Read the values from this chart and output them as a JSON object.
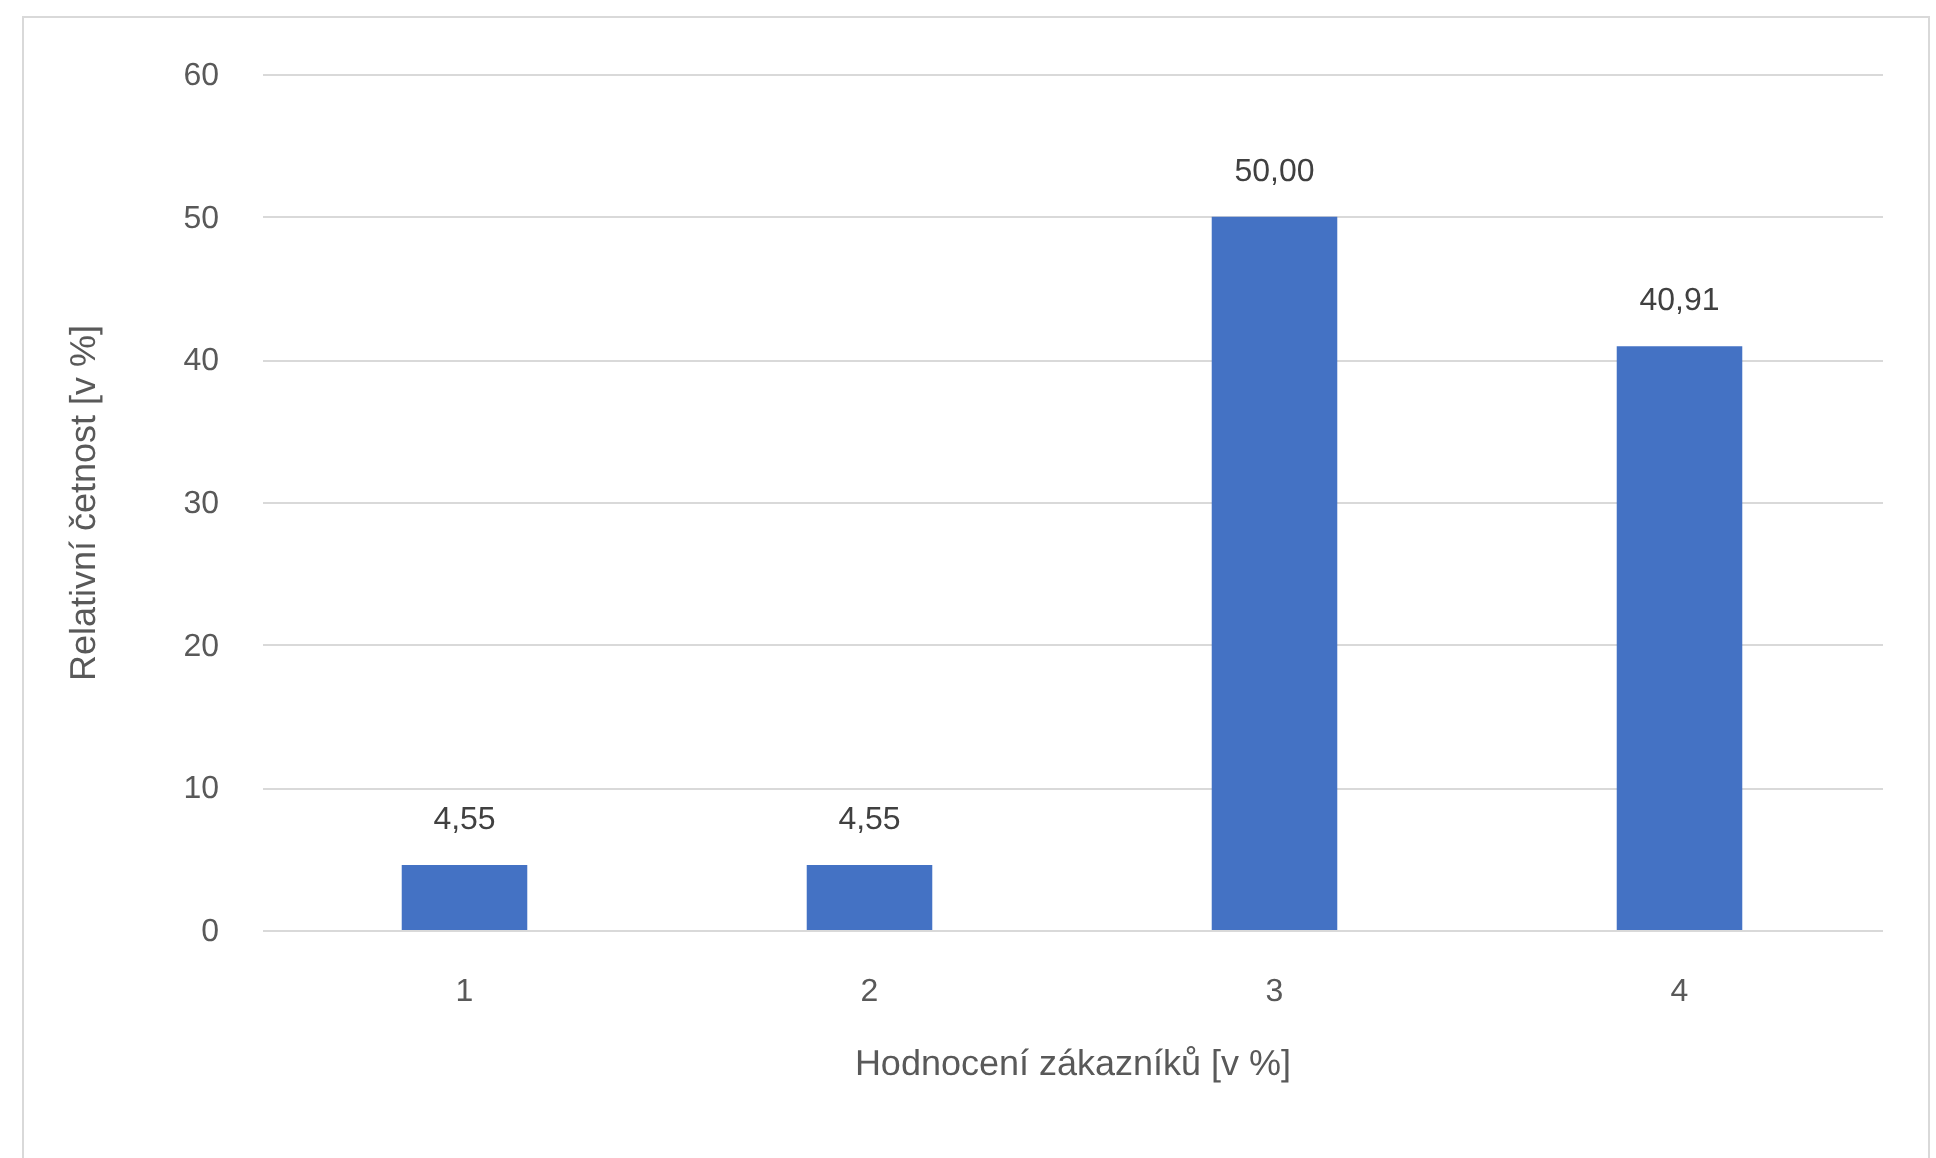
{
  "chart_data": {
    "type": "bar",
    "xlabel": "Hodnocení zákazníků [v %]",
    "ylabel": "Relativní četnost [v %]",
    "categories": [
      "1",
      "2",
      "3",
      "4"
    ],
    "values": [
      4.55,
      4.55,
      50,
      40.91
    ],
    "value_labels": [
      "4,55",
      "4,55",
      "50,00",
      "40,91"
    ],
    "color": "#4472c4",
    "ylim": [
      0,
      60
    ],
    "yticks": [
      0,
      10,
      20,
      30,
      40,
      50,
      60
    ],
    "grid": "y"
  }
}
